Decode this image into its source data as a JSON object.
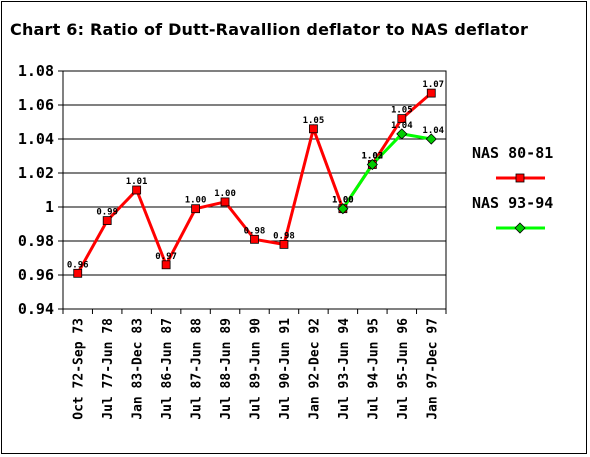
{
  "chart_data": {
    "type": "line",
    "title": "Chart 6: Ratio of Dutt-Ravallion deflator to NAS deflator",
    "xlabel": "",
    "ylabel": "",
    "ylim": [
      0.94,
      1.08
    ],
    "yticks": [
      "1.08",
      "1.06",
      "1.04",
      "1.02",
      "1",
      "0.98",
      "0.96",
      "0.94"
    ],
    "grid": true,
    "legend_position": "right",
    "categories": [
      "Oct 72-Sep 73",
      "Jul 77-Jun 78",
      "Jan 83-Dec 83",
      "Jul 86-Jun 87",
      "Jul 87-Jun 88",
      "Jul 88-Jun 89",
      "Jul 89-Jun 90",
      "Jul 90-Jun 91",
      "Jan 92-Dec 92",
      "Jul 93-Jun 94",
      "Jul 94-Jun 95",
      "Jul 95-Jun 96",
      "Jan 97-Dec 97"
    ],
    "series": [
      {
        "name": "NAS 80-81",
        "color": "#ff0000",
        "marker_color": "#ff0000",
        "values": [
          0.961,
          0.992,
          1.01,
          0.966,
          0.999,
          1.003,
          0.981,
          0.978,
          1.046,
          0.999,
          1.025,
          1.052,
          1.067
        ],
        "labels": [
          "0.96",
          "0.99",
          "1.01",
          "0.97",
          "1.00",
          "1.00",
          "0.98",
          "0.98",
          "1.05",
          "1.00",
          "1.03",
          "1.05",
          "1.07"
        ]
      },
      {
        "name": "NAS 93-94",
        "color": "#00ff00",
        "marker_color": "#00cc00",
        "values": [
          null,
          null,
          null,
          null,
          null,
          null,
          null,
          null,
          null,
          0.999,
          1.025,
          1.043,
          1.04
        ],
        "labels": [
          null,
          null,
          null,
          null,
          null,
          null,
          null,
          null,
          null,
          "1.00",
          "1.02",
          "1.04",
          "1.04"
        ]
      }
    ]
  }
}
